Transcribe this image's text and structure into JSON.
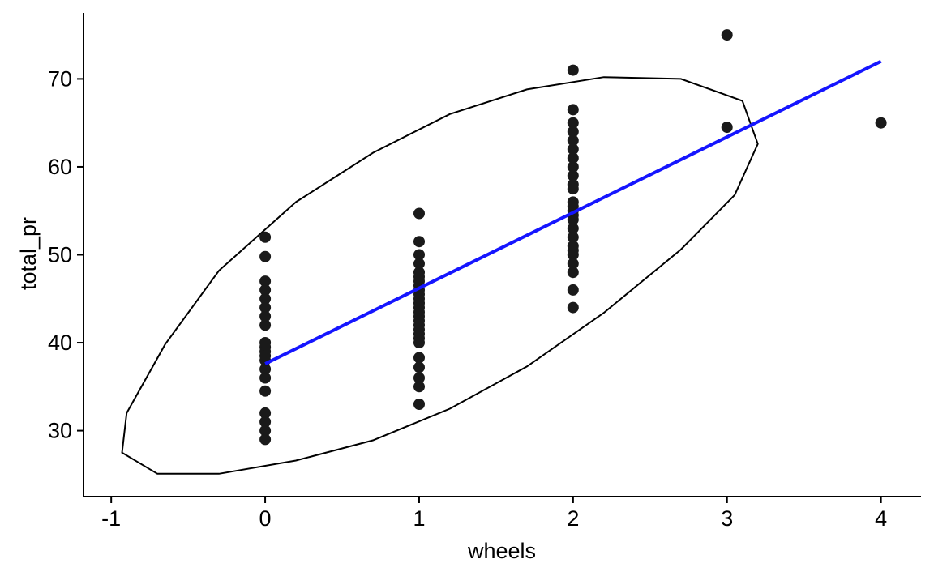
{
  "chart_data": {
    "type": "scatter",
    "title": "",
    "xlabel": "wheels",
    "ylabel": "total_pr",
    "xlim": [
      -1.18,
      4.26
    ],
    "ylim": [
      22.5,
      77.5
    ],
    "x_ticks": [
      -1,
      0,
      1,
      2,
      3,
      4
    ],
    "x_tick_labels": [
      "-1",
      "0",
      "1",
      "2",
      "3",
      "4"
    ],
    "y_ticks": [
      30,
      40,
      50,
      60,
      70
    ],
    "y_tick_labels": [
      "30",
      "40",
      "50",
      "60",
      "70"
    ],
    "grid": false,
    "legend": "none",
    "colors": {
      "points": "#1a1a1a",
      "fit_line": "#1515ff",
      "ellipse": "#000000",
      "axes": "#000000"
    },
    "points": [
      {
        "x": 0,
        "y": 52.0
      },
      {
        "x": 0,
        "y": 49.8
      },
      {
        "x": 0,
        "y": 47.0
      },
      {
        "x": 0,
        "y": 46.0
      },
      {
        "x": 0,
        "y": 45.0
      },
      {
        "x": 0,
        "y": 44.0
      },
      {
        "x": 0,
        "y": 43.0
      },
      {
        "x": 0,
        "y": 42.0
      },
      {
        "x": 0,
        "y": 40.0
      },
      {
        "x": 0,
        "y": 39.5
      },
      {
        "x": 0,
        "y": 39.0
      },
      {
        "x": 0,
        "y": 38.5
      },
      {
        "x": 0,
        "y": 38.0
      },
      {
        "x": 0,
        "y": 37.0
      },
      {
        "x": 0,
        "y": 36.0
      },
      {
        "x": 0,
        "y": 34.5
      },
      {
        "x": 0,
        "y": 32.0
      },
      {
        "x": 0,
        "y": 31.0
      },
      {
        "x": 0,
        "y": 30.0
      },
      {
        "x": 0,
        "y": 29.0
      },
      {
        "x": 1,
        "y": 54.7
      },
      {
        "x": 1,
        "y": 51.5
      },
      {
        "x": 1,
        "y": 50.0
      },
      {
        "x": 1,
        "y": 49.0
      },
      {
        "x": 1,
        "y": 48.0
      },
      {
        "x": 1,
        "y": 47.5
      },
      {
        "x": 1,
        "y": 47.0
      },
      {
        "x": 1,
        "y": 46.5
      },
      {
        "x": 1,
        "y": 46.0
      },
      {
        "x": 1,
        "y": 45.5
      },
      {
        "x": 1,
        "y": 45.0
      },
      {
        "x": 1,
        "y": 44.5
      },
      {
        "x": 1,
        "y": 44.0
      },
      {
        "x": 1,
        "y": 43.5
      },
      {
        "x": 1,
        "y": 43.0
      },
      {
        "x": 1,
        "y": 42.5
      },
      {
        "x": 1,
        "y": 42.0
      },
      {
        "x": 1,
        "y": 41.5
      },
      {
        "x": 1,
        "y": 41.0
      },
      {
        "x": 1,
        "y": 40.5
      },
      {
        "x": 1,
        "y": 40.0
      },
      {
        "x": 1,
        "y": 38.3
      },
      {
        "x": 1,
        "y": 37.2
      },
      {
        "x": 1,
        "y": 36.0
      },
      {
        "x": 1,
        "y": 35.0
      },
      {
        "x": 1,
        "y": 33.0
      },
      {
        "x": 2,
        "y": 71.0
      },
      {
        "x": 2,
        "y": 66.5
      },
      {
        "x": 2,
        "y": 65.0
      },
      {
        "x": 2,
        "y": 64.0
      },
      {
        "x": 2,
        "y": 63.0
      },
      {
        "x": 2,
        "y": 62.0
      },
      {
        "x": 2,
        "y": 61.0
      },
      {
        "x": 2,
        "y": 60.0
      },
      {
        "x": 2,
        "y": 59.0
      },
      {
        "x": 2,
        "y": 58.0
      },
      {
        "x": 2,
        "y": 57.5
      },
      {
        "x": 2,
        "y": 56.0
      },
      {
        "x": 2,
        "y": 55.5
      },
      {
        "x": 2,
        "y": 55.0
      },
      {
        "x": 2,
        "y": 54.5
      },
      {
        "x": 2,
        "y": 54.0
      },
      {
        "x": 2,
        "y": 53.0
      },
      {
        "x": 2,
        "y": 52.0
      },
      {
        "x": 2,
        "y": 51.0
      },
      {
        "x": 2,
        "y": 50.5
      },
      {
        "x": 2,
        "y": 50.0
      },
      {
        "x": 2,
        "y": 49.0
      },
      {
        "x": 2,
        "y": 48.0
      },
      {
        "x": 2,
        "y": 46.0
      },
      {
        "x": 2,
        "y": 44.0
      },
      {
        "x": 3,
        "y": 75.0
      },
      {
        "x": 3,
        "y": 64.5
      },
      {
        "x": 4,
        "y": 65.0
      }
    ],
    "fit_line": {
      "x": [
        0,
        4
      ],
      "y": [
        37.6,
        72.0
      ]
    },
    "ellipse": {
      "x": [
        0.2,
        0.7,
        1.2,
        1.7,
        2.2,
        2.7,
        3.1,
        3.2,
        3.05,
        2.7,
        2.2,
        1.7,
        1.2,
        0.7,
        0.2,
        -0.3,
        -0.7,
        -0.93,
        -0.9,
        -0.65,
        -0.3,
        0.2
      ],
      "y": [
        56.0,
        61.6,
        66.0,
        68.8,
        70.2,
        70.0,
        67.5,
        62.6,
        56.8,
        50.6,
        43.4,
        37.3,
        32.5,
        28.9,
        26.6,
        25.1,
        25.1,
        27.5,
        32.0,
        39.8,
        48.2,
        56.0
      ]
    }
  }
}
